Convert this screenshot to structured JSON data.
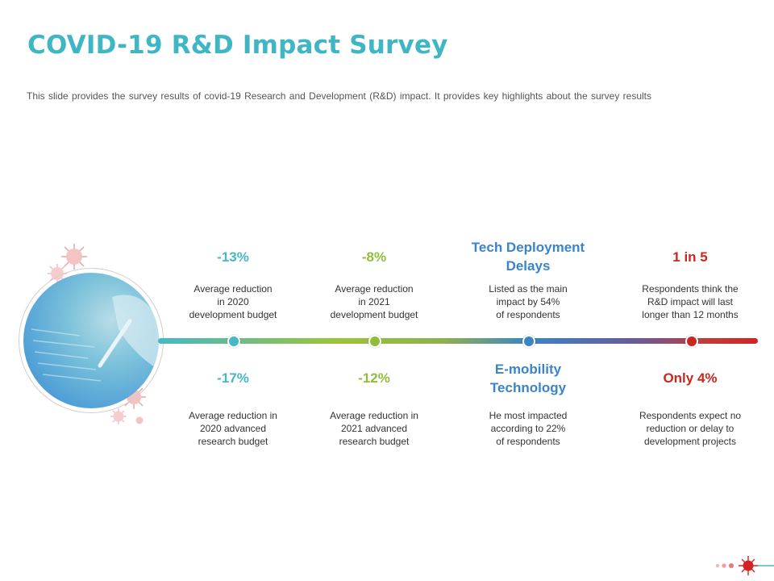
{
  "title": "COVID-19 R&D Impact Survey",
  "subtitle": "This slide provides  the survey results of covid-19  Research and Development  (R&D) impact. It provides  key highlights about the survey results",
  "colors": {
    "teal": "#46b8c4",
    "green": "#8fbe3a",
    "blue": "#3a84c8",
    "red": "#c8281f"
  },
  "stats": {
    "top": [
      {
        "value": "-13%",
        "desc": [
          "Average  reduction",
          "in 2020",
          "development  budget"
        ]
      },
      {
        "value": "-8%",
        "desc": [
          "Average  reduction",
          "in 2021",
          "development  budget"
        ]
      },
      {
        "value": [
          "Tech Deployment",
          "Delays"
        ],
        "desc": [
          "Listed as the main",
          "impact by 54%",
          "of respondents"
        ]
      },
      {
        "value": "1 in 5",
        "desc": [
          "Respondents think the",
          "R&D impact will last",
          "longer than 12 months"
        ]
      }
    ],
    "bottom": [
      {
        "value": "-17%",
        "desc": [
          "Average  reduction in",
          "2020 advanced",
          "research budget"
        ]
      },
      {
        "value": "-12%",
        "desc": [
          "Average  reduction  in",
          "2021 advanced",
          "research budget"
        ]
      },
      {
        "value": [
          "E-mobility",
          "Technology"
        ],
        "desc": [
          "He most impacted",
          "according to 22%",
          "of respondents"
        ]
      },
      {
        "value": "Only 4%",
        "desc": [
          "Respondents  expect no",
          "reduction  or delay to",
          "development  projects"
        ]
      }
    ]
  },
  "icons": {
    "photo": "survey-photo",
    "virus": "virus-icon"
  }
}
